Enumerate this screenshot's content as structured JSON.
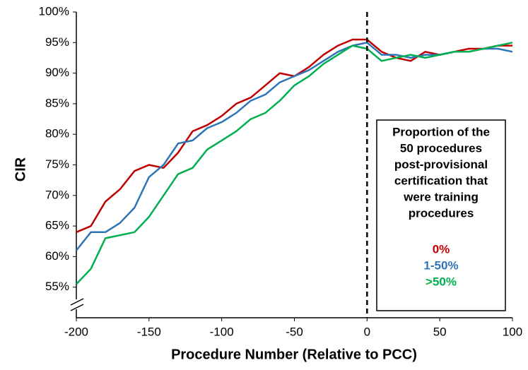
{
  "chart_data": {
    "type": "line",
    "x_label": "Procedure Number (Relative to PCC)",
    "y_label": "CIR",
    "x": [
      -200,
      -190,
      -180,
      -170,
      -160,
      -150,
      -140,
      -130,
      -120,
      -110,
      -100,
      -90,
      -80,
      -70,
      -60,
      -50,
      -40,
      -30,
      -20,
      -10,
      0,
      10,
      20,
      30,
      40,
      50,
      60,
      70,
      80,
      90,
      100
    ],
    "series": [
      {
        "name": "0%",
        "color": "#c00000",
        "values": [
          64,
          65,
          69,
          71,
          74,
          75,
          74.5,
          77,
          80.5,
          81.5,
          83,
          85,
          86,
          88,
          90,
          89.5,
          91,
          93,
          94.5,
          95.5,
          95.5,
          93.5,
          92.5,
          92,
          93.5,
          93,
          93.5,
          94,
          94,
          94.5,
          94.5
        ]
      },
      {
        "name": "1-50%",
        "color": "#2e75b6",
        "values": [
          61,
          64,
          64,
          65.5,
          68,
          73,
          75,
          78.5,
          79,
          81,
          82,
          83.5,
          85.5,
          86.5,
          88.5,
          89.5,
          90.5,
          92,
          93.5,
          94.5,
          95,
          93,
          93,
          92.5,
          93,
          93,
          93.5,
          93.5,
          94,
          94,
          93.5
        ]
      },
      {
        "name": ">50%",
        "color": "#00b050",
        "values": [
          55.5,
          58,
          63,
          63.5,
          64,
          66.5,
          70,
          73.5,
          74.5,
          77.5,
          79,
          80.5,
          82.5,
          83.5,
          85.5,
          88,
          89.5,
          91.5,
          93,
          94.5,
          94,
          92,
          92.5,
          93,
          92.5,
          93,
          93.5,
          93.5,
          94,
          94.5,
          95
        ]
      }
    ],
    "xlim": [
      -200,
      100
    ],
    "xticks": [
      -200,
      -150,
      -100,
      -50,
      0,
      50,
      100
    ],
    "ylim": [
      50,
      100
    ],
    "yticks": [
      {
        "value": 55,
        "label": "55%"
      },
      {
        "value": 60,
        "label": "60%"
      },
      {
        "value": 65,
        "label": "65%"
      },
      {
        "value": 70,
        "label": "70%"
      },
      {
        "value": 75,
        "label": "75%"
      },
      {
        "value": 80,
        "label": "80%"
      },
      {
        "value": 85,
        "label": "85%"
      },
      {
        "value": 90,
        "label": "90%"
      },
      {
        "value": 95,
        "label": "95%"
      },
      {
        "value": 100,
        "label": "100%"
      }
    ],
    "vline": 0,
    "legend_title": [
      "Proportion of the",
      "50 procedures",
      "post-provisional",
      "certification that",
      "were training",
      "procedures"
    ]
  }
}
